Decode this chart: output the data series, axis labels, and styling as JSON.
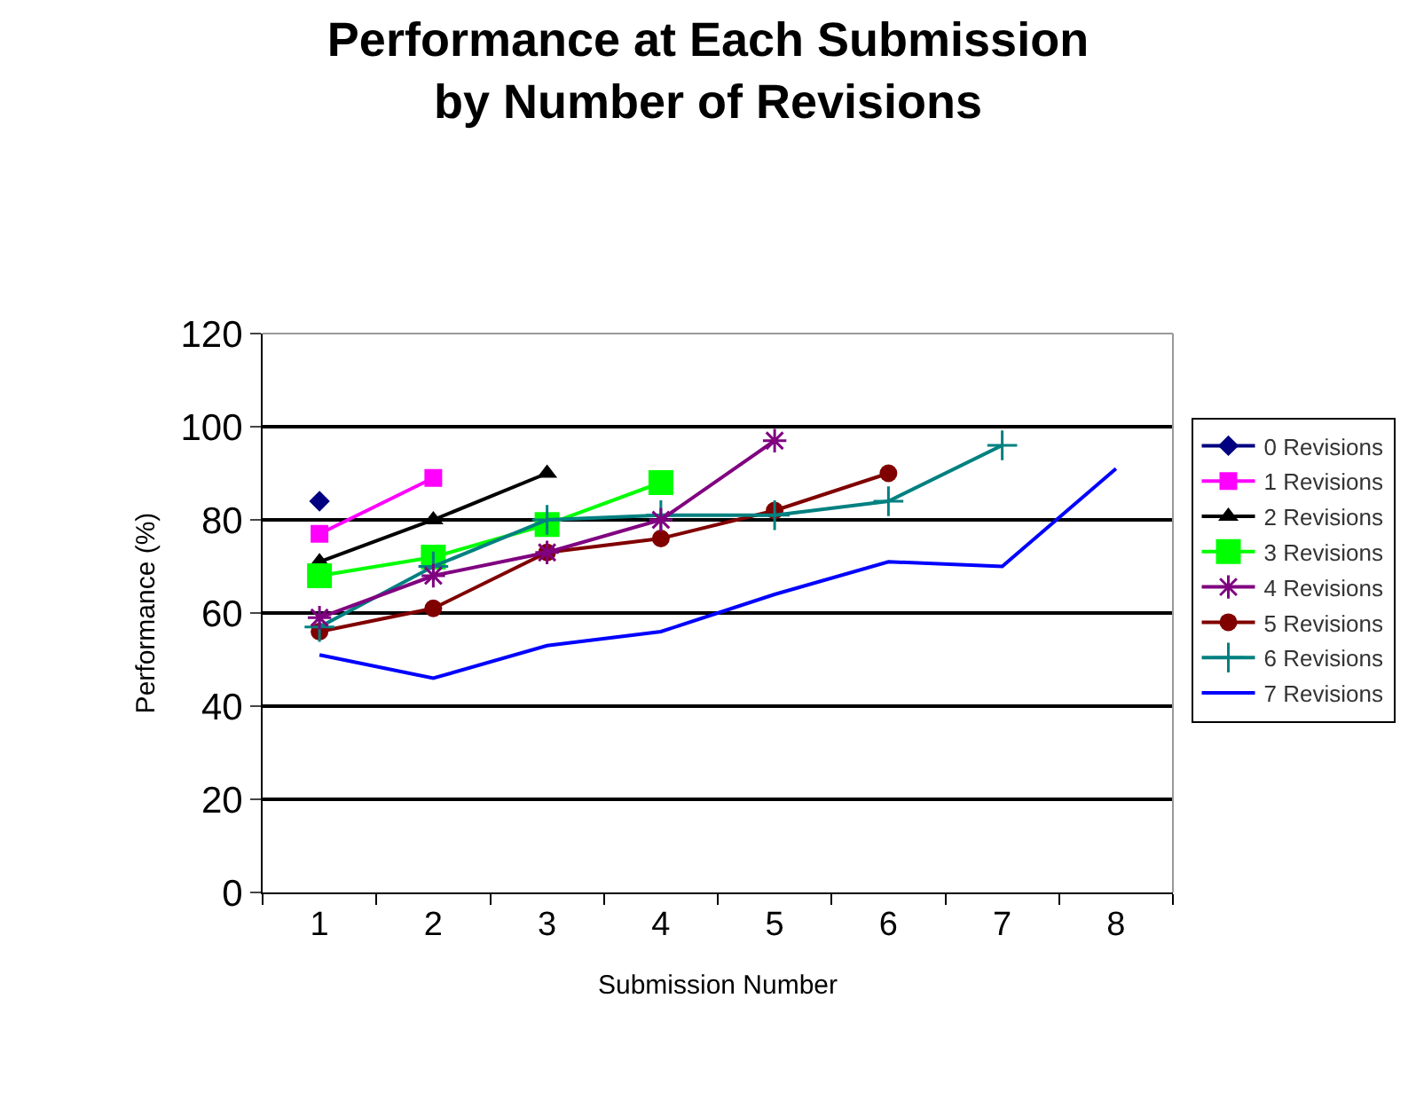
{
  "chart_data": {
    "type": "line",
    "title": "Performance at Each Submission\nby Number of Revisions",
    "xlabel": "Submission Number",
    "ylabel": "Performance (%)",
    "categories": [
      "1",
      "2",
      "3",
      "4",
      "5",
      "6",
      "7",
      "8"
    ],
    "ylim": [
      0,
      120
    ],
    "yticks": [
      0,
      20,
      40,
      60,
      80,
      100,
      120
    ],
    "grid": "y",
    "legend": "right",
    "series": [
      {
        "name": "0 Revisions",
        "color": "#000080",
        "marker": "diamond",
        "values": [
          84,
          null,
          null,
          null,
          null,
          null,
          null,
          null
        ]
      },
      {
        "name": "1 Revisions",
        "color": "#ff00ff",
        "marker": "square",
        "values": [
          77,
          89,
          null,
          null,
          null,
          null,
          null,
          null
        ]
      },
      {
        "name": "2 Revisions",
        "color": "#000000",
        "marker": "triangle",
        "values": [
          71,
          80,
          90,
          null,
          null,
          null,
          null,
          null
        ]
      },
      {
        "name": "3 Revisions",
        "color": "#00ff00",
        "marker": "square",
        "values": [
          68,
          72,
          79,
          88,
          null,
          null,
          null,
          null
        ]
      },
      {
        "name": "4 Revisions",
        "color": "#800080",
        "marker": "cross",
        "values": [
          59,
          68,
          73,
          80,
          97,
          null,
          null,
          null
        ]
      },
      {
        "name": "5 Revisions",
        "color": "#800000",
        "marker": "circle",
        "values": [
          56,
          61,
          73,
          76,
          82,
          90,
          null,
          null
        ]
      },
      {
        "name": "6 Revisions",
        "color": "#008080",
        "marker": "cross",
        "values": [
          57,
          70,
          80,
          81,
          81,
          84,
          96,
          null
        ]
      },
      {
        "name": "7 Revisions",
        "color": "#0000ff",
        "marker": "none",
        "values": [
          51,
          46,
          53,
          56,
          64,
          71,
          70,
          91
        ]
      }
    ]
  }
}
